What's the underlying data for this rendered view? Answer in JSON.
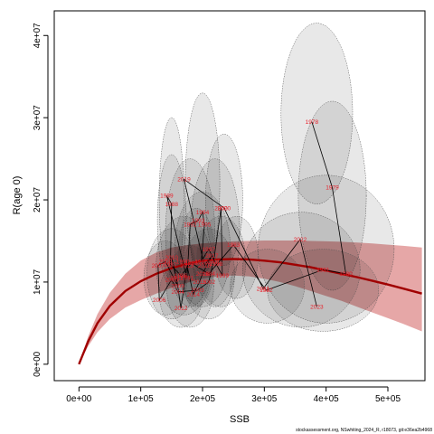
{
  "chart_data": {
    "type": "scatter",
    "xlabel": "SSB",
    "ylabel": "R(age 0)",
    "xlim": [
      -40000,
      560000
    ],
    "ylim": [
      -2000000,
      43000000
    ],
    "x_ticks": [
      0,
      100000,
      200000,
      300000,
      400000,
      500000
    ],
    "x_tick_labels": [
      "0e+00",
      "1e+05",
      "2e+05",
      "3e+05",
      "4e+05",
      "5e+05"
    ],
    "y_ticks": [
      0,
      10000000,
      20000000,
      30000000,
      40000000
    ],
    "y_tick_labels": [
      "0e+00",
      "1e+07",
      "2e+07",
      "3e+07",
      "4e+07"
    ],
    "colors": {
      "curve": "#a00000",
      "band": "#c83c3c",
      "ellipse_fill": "#000000",
      "labels": "#e8202a",
      "trajectory": "#000000"
    },
    "stock_recruitment_curve": {
      "x": [
        0,
        15000,
        30000,
        50000,
        75000,
        100000,
        125000,
        150000,
        175000,
        200000,
        225000,
        250000,
        275000,
        300000,
        325000,
        350000,
        375000,
        400000,
        425000,
        450000,
        475000,
        500000,
        525000,
        555000
      ],
      "y": [
        0,
        2800000,
        5000000,
        7100000,
        8900000,
        10100000,
        11000000,
        11700000,
        12200000,
        12600000,
        12750000,
        12800000,
        12750000,
        12600000,
        12400000,
        12100000,
        11800000,
        11400000,
        11000000,
        10600000,
        10150000,
        9700000,
        9200000,
        8600000
      ],
      "band_upper": [
        0,
        3400000,
        6100000,
        8700000,
        11000000,
        12600000,
        13600000,
        14200000,
        14500000,
        14700000,
        14850000,
        14950000,
        15000000,
        15050000,
        15050000,
        15050000,
        15000000,
        14950000,
        14900000,
        14800000,
        14700000,
        14550000,
        14400000,
        14200000
      ],
      "band_lower": [
        0,
        2200000,
        3900000,
        5500000,
        6900000,
        7800000,
        8600000,
        9300000,
        9900000,
        10400000,
        10700000,
        10800000,
        10700000,
        10400000,
        10000000,
        9500000,
        8900000,
        8300000,
        7700000,
        7000000,
        6300000,
        5600000,
        4900000,
        4000000
      ]
    },
    "points": [
      {
        "label": "1978",
        "x": 377000,
        "y": 29500000
      },
      {
        "label": "1979",
        "x": 410000,
        "y": 21500000
      },
      {
        "label": "1980",
        "x": 432000,
        "y": 11000000
      },
      {
        "label": "1981",
        "x": 395000,
        "y": 11500000
      },
      {
        "label": "1982",
        "x": 303000,
        "y": 9000000
      },
      {
        "label": "1983",
        "x": 250000,
        "y": 14500000
      },
      {
        "label": "1984",
        "x": 210000,
        "y": 11000000
      },
      {
        "label": "1985",
        "x": 182000,
        "y": 12300000
      },
      {
        "label": "1986",
        "x": 165000,
        "y": 10800000
      },
      {
        "label": "1987",
        "x": 148000,
        "y": 12100000
      },
      {
        "label": "1988",
        "x": 150000,
        "y": 19500000
      },
      {
        "label": "1989",
        "x": 142000,
        "y": 20500000
      },
      {
        "label": "1990",
        "x": 168000,
        "y": 12500000
      },
      {
        "label": "1991",
        "x": 175000,
        "y": 10500000
      },
      {
        "label": "1992",
        "x": 180000,
        "y": 17000000
      },
      {
        "label": "1993",
        "x": 193000,
        "y": 17500000
      },
      {
        "label": "1994",
        "x": 200000,
        "y": 18500000
      },
      {
        "label": "1995",
        "x": 203000,
        "y": 17000000
      },
      {
        "label": "1996",
        "x": 198000,
        "y": 12500000
      },
      {
        "label": "1997",
        "x": 210000,
        "y": 14000000
      },
      {
        "label": "1998",
        "x": 222000,
        "y": 12200000
      },
      {
        "label": "1999",
        "x": 232000,
        "y": 10800000
      },
      {
        "label": "2000",
        "x": 230000,
        "y": 19000000
      },
      {
        "label": "2001",
        "x": 218000,
        "y": 12500000
      },
      {
        "label": "2002",
        "x": 210000,
        "y": 10000000
      },
      {
        "label": "2003",
        "x": 192000,
        "y": 9000000
      },
      {
        "label": "2004",
        "x": 160000,
        "y": 8800000
      },
      {
        "label": "2005",
        "x": 150000,
        "y": 10300000
      },
      {
        "label": "2006",
        "x": 130000,
        "y": 7800000
      },
      {
        "label": "2007",
        "x": 128000,
        "y": 12000000
      },
      {
        "label": "2008",
        "x": 140000,
        "y": 12500000
      },
      {
        "label": "2009",
        "x": 160000,
        "y": 9500000
      },
      {
        "label": "2010",
        "x": 150000,
        "y": 13000000
      },
      {
        "label": "2011",
        "x": 158000,
        "y": 10500000
      },
      {
        "label": "2012",
        "x": 165000,
        "y": 6800000
      },
      {
        "label": "2013",
        "x": 175000,
        "y": 12000000
      },
      {
        "label": "2014",
        "x": 185000,
        "y": 8500000
      },
      {
        "label": "2015",
        "x": 195000,
        "y": 10000000
      },
      {
        "label": "2016",
        "x": 200000,
        "y": 11000000
      },
      {
        "label": "2017",
        "x": 215000,
        "y": 13200000
      },
      {
        "label": "2018",
        "x": 203000,
        "y": 12000000
      },
      {
        "label": "2019",
        "x": 170000,
        "y": 22500000
      },
      {
        "label": "2020",
        "x": 235000,
        "y": 19000000
      },
      {
        "label": "2021",
        "x": 298000,
        "y": 9200000
      },
      {
        "label": "2022",
        "x": 358000,
        "y": 15200000
      },
      {
        "label": "2023",
        "x": 385000,
        "y": 7000000
      }
    ],
    "ellipses": [
      {
        "cx": 385000,
        "cy": 30500000,
        "rx": 58000,
        "ry": 11000000
      },
      {
        "cx": 410000,
        "cy": 20500000,
        "rx": 55000,
        "ry": 11500000
      },
      {
        "cx": 400000,
        "cy": 14000000,
        "rx": 110000,
        "ry": 9000000
      },
      {
        "cx": 360000,
        "cy": 11500000,
        "rx": 95000,
        "ry": 7000000
      },
      {
        "cx": 395000,
        "cy": 9000000,
        "rx": 90000,
        "ry": 5000000
      },
      {
        "cx": 305000,
        "cy": 9500000,
        "rx": 60000,
        "ry": 4500000
      },
      {
        "cx": 200000,
        "cy": 22000000,
        "rx": 28000,
        "ry": 11000000
      },
      {
        "cx": 150000,
        "cy": 20000000,
        "rx": 20000,
        "ry": 10000000
      },
      {
        "cx": 150000,
        "cy": 17500000,
        "rx": 23000,
        "ry": 8000000
      },
      {
        "cx": 235000,
        "cy": 20000000,
        "rx": 30000,
        "ry": 8000000
      },
      {
        "cx": 220000,
        "cy": 16000000,
        "rx": 40000,
        "ry": 9000000
      },
      {
        "cx": 180000,
        "cy": 16000000,
        "rx": 40000,
        "ry": 9000000
      },
      {
        "cx": 200000,
        "cy": 14000000,
        "rx": 45000,
        "ry": 7000000
      },
      {
        "cx": 170000,
        "cy": 12000000,
        "rx": 45000,
        "ry": 6000000
      },
      {
        "cx": 150000,
        "cy": 11000000,
        "rx": 40000,
        "ry": 5500000
      },
      {
        "cx": 180000,
        "cy": 9500000,
        "rx": 38000,
        "ry": 5000000
      },
      {
        "cx": 210000,
        "cy": 11000000,
        "rx": 42000,
        "ry": 5500000
      },
      {
        "cx": 140000,
        "cy": 10500000,
        "rx": 35000,
        "ry": 4500000
      },
      {
        "cx": 230000,
        "cy": 12500000,
        "rx": 40000,
        "ry": 5500000
      },
      {
        "cx": 165000,
        "cy": 8500000,
        "rx": 35000,
        "ry": 4000000
      },
      {
        "cx": 255000,
        "cy": 13000000,
        "rx": 35000,
        "ry": 5000000
      },
      {
        "cx": 190000,
        "cy": 13000000,
        "rx": 30000,
        "ry": 6000000
      }
    ],
    "trajectory_order": [
      "1978",
      "1979",
      "1980",
      "1981",
      "1982",
      "1983",
      "1984",
      "1985",
      "1986",
      "1987",
      "1988",
      "1989",
      "1990",
      "1991",
      "1992",
      "1993",
      "1994",
      "1995",
      "1996",
      "1997",
      "1998",
      "1999",
      "2000",
      "2001",
      "2002",
      "2003",
      "2004",
      "2005",
      "2006",
      "2007",
      "2008",
      "2009",
      "2010",
      "2011",
      "2012",
      "2013",
      "2014",
      "2015",
      "2016",
      "2017",
      "2018",
      "2019",
      "2020",
      "2021",
      "2022",
      "2023"
    ]
  },
  "footer": "stockassessment.org, NSwhiting_2024_R, r18073, git:e36ea2b4968"
}
